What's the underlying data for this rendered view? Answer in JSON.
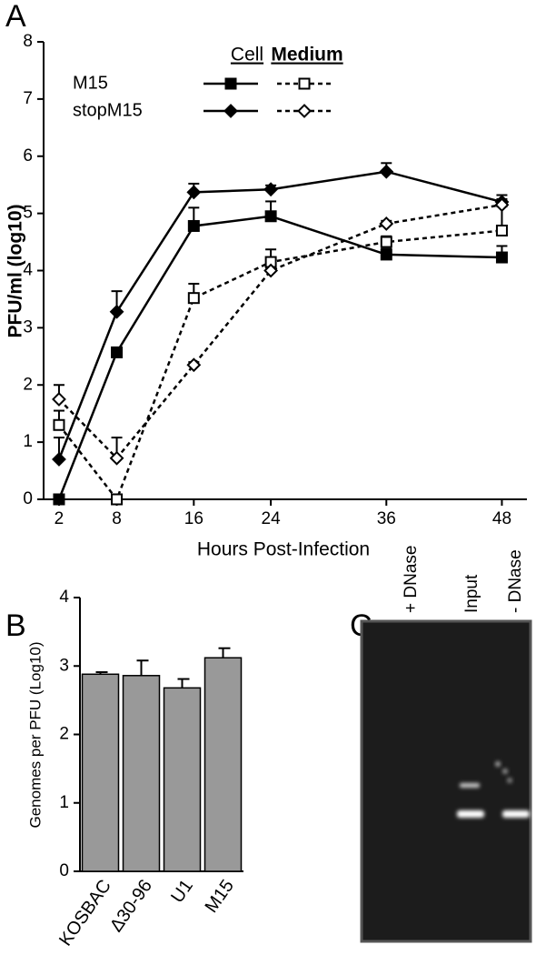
{
  "chart_data": [
    {
      "type": "line",
      "panel": "A",
      "x_label": "Hours Post-Infection",
      "y_label": "PFU/ml (log10)",
      "x": [
        2,
        8,
        16,
        24,
        36,
        48
      ],
      "xlim": [
        0.4,
        50.6
      ],
      "xticks": [
        2,
        8,
        16,
        24,
        36,
        48
      ],
      "ylim": [
        0,
        8
      ],
      "yticks": [
        0,
        1,
        2,
        3,
        4,
        5,
        6,
        7,
        8
      ],
      "series": [
        {
          "name": "M15",
          "group": "Cell",
          "color": "#000000",
          "line": "solid",
          "marker": "square",
          "filled": true,
          "values": [
            0,
            2.57,
            4.78,
            4.95,
            4.28,
            4.23
          ],
          "errors": [
            0,
            0,
            0.32,
            0.26,
            0.1,
            0.2
          ]
        },
        {
          "name": "stopM15",
          "group": "Cell",
          "color": "#000000",
          "line": "solid",
          "marker": "diamond",
          "filled": true,
          "values": [
            0.7,
            3.28,
            5.37,
            5.42,
            5.73,
            5.2
          ],
          "errors": [
            0.38,
            0.36,
            0.15,
            0.07,
            0.15,
            0.12
          ]
        },
        {
          "name": "M15",
          "group": "Medium",
          "color": "#000000",
          "line": "dashed",
          "marker": "square",
          "filled": false,
          "values": [
            1.3,
            0,
            3.52,
            4.15,
            4.5,
            4.7
          ],
          "errors": [
            0.25,
            0,
            0.25,
            0.22,
            0.1,
            0.42
          ]
        },
        {
          "name": "stopM15",
          "group": "Medium",
          "color": "#000000",
          "line": "dashed",
          "marker": "diamond",
          "filled": false,
          "values": [
            1.75,
            0.72,
            2.35,
            4.0,
            4.82,
            5.15
          ],
          "errors": [
            0.25,
            0.36,
            0.05,
            0.05,
            0.05,
            0.1
          ]
        }
      ]
    },
    {
      "type": "bar",
      "panel": "B",
      "y_label": "Genomes per PFU (Log10)",
      "categories": [
        "KOSBAC",
        "Δ30-96",
        "U1",
        "M15"
      ],
      "values": [
        2.88,
        2.86,
        2.68,
        3.12
      ],
      "errors": [
        0.03,
        0.22,
        0.13,
        0.14
      ],
      "color": "#999999",
      "ylim": [
        0,
        4
      ],
      "yticks": [
        0,
        1,
        2,
        3,
        4
      ]
    },
    {
      "type": "gel",
      "panel": "C",
      "lanes": [
        "+ DNase",
        "Input",
        "- DNase"
      ]
    }
  ]
}
